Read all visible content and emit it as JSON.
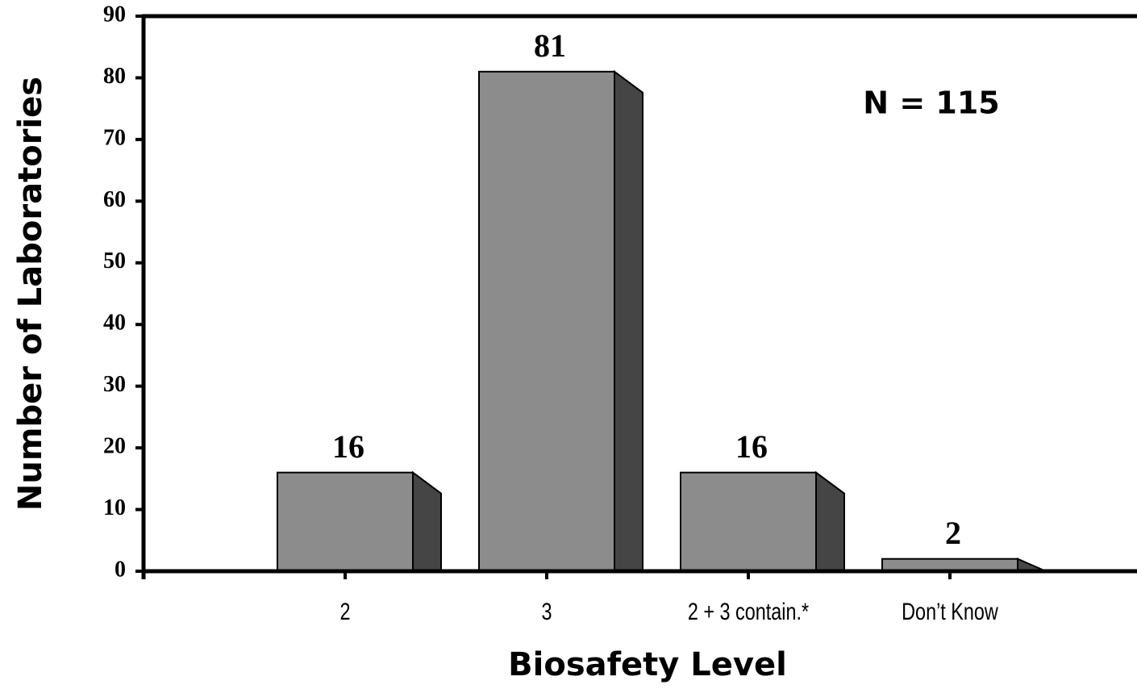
{
  "chart_data": {
    "type": "bar3d",
    "x_label": "Biosafety Level",
    "y_label": "Number of Laboratories",
    "annotation": "N = 115",
    "categories": [
      "2",
      "3",
      "2 + 3 contain.*",
      "Don’t Know"
    ],
    "values": [
      16,
      81,
      16,
      2
    ],
    "color": "#8c8c8c",
    "side_color": "#454545",
    "ylim": [
      0,
      90
    ],
    "yticks": [
      0,
      10,
      20,
      30,
      40,
      50,
      60,
      70,
      80,
      90
    ],
    "grid": false
  }
}
